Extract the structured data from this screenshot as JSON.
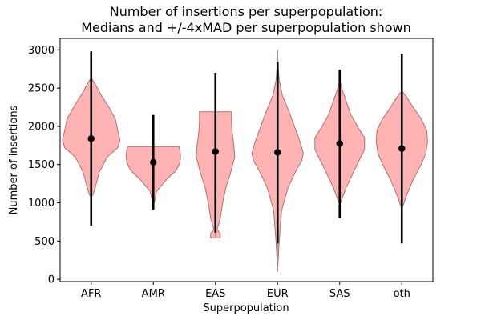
{
  "chart_data": {
    "type": "violin",
    "title_line1": "Number of insertions per superpopulation:",
    "title_line2": "Medians and +/-4xMAD per superpopulation shown",
    "xlabel": "Superpopulation",
    "ylabel": "Number of insertions",
    "ylim": [
      -30,
      3150
    ],
    "yticks": [
      0,
      500,
      1000,
      1500,
      2000,
      2500,
      3000
    ],
    "categories": [
      "AFR",
      "AMR",
      "EAS",
      "EUR",
      "SAS",
      "oth"
    ],
    "medians": [
      1840,
      1530,
      1670,
      1660,
      1775,
      1710
    ],
    "err_low": [
      700,
      910,
      610,
      470,
      800,
      470
    ],
    "err_high": [
      2980,
      2150,
      2700,
      2840,
      2740,
      2950
    ],
    "violin_min": [
      1100,
      1000,
      540,
      100,
      1000,
      950
    ],
    "violin_max": [
      2620,
      1735,
      2190,
      3000,
      2600,
      2450
    ],
    "violin_profiles": [
      [
        [
          1100,
          0.02
        ],
        [
          1200,
          0.05
        ],
        [
          1400,
          0.1
        ],
        [
          1600,
          0.2
        ],
        [
          1720,
          0.33
        ],
        [
          1820,
          0.36
        ],
        [
          1950,
          0.33
        ],
        [
          2100,
          0.3
        ],
        [
          2250,
          0.22
        ],
        [
          2400,
          0.13
        ],
        [
          2550,
          0.05
        ],
        [
          2620,
          0.01
        ]
      ],
      [
        [
          1000,
          0.01
        ],
        [
          1150,
          0.04
        ],
        [
          1300,
          0.16
        ],
        [
          1420,
          0.28
        ],
        [
          1520,
          0.33
        ],
        [
          1620,
          0.34
        ],
        [
          1700,
          0.33
        ],
        [
          1735,
          0.32
        ]
      ],
      [
        [
          540,
          0.06
        ],
        [
          600,
          0.06
        ],
        [
          650,
          0.02
        ],
        [
          800,
          0.06
        ],
        [
          1000,
          0.09
        ],
        [
          1200,
          0.13
        ],
        [
          1400,
          0.19
        ],
        [
          1600,
          0.24
        ],
        [
          1750,
          0.23
        ],
        [
          1900,
          0.21
        ],
        [
          2050,
          0.2
        ],
        [
          2150,
          0.2
        ],
        [
          2190,
          0.2
        ]
      ],
      [
        [
          100,
          0.0
        ],
        [
          500,
          0.02
        ],
        [
          900,
          0.05
        ],
        [
          1200,
          0.13
        ],
        [
          1400,
          0.22
        ],
        [
          1550,
          0.3
        ],
        [
          1650,
          0.32
        ],
        [
          1800,
          0.28
        ],
        [
          2000,
          0.21
        ],
        [
          2200,
          0.14
        ],
        [
          2400,
          0.06
        ],
        [
          2600,
          0.02
        ],
        [
          2800,
          0.005
        ],
        [
          3000,
          0.0
        ]
      ],
      [
        [
          1000,
          0.01
        ],
        [
          1200,
          0.08
        ],
        [
          1400,
          0.17
        ],
        [
          1550,
          0.24
        ],
        [
          1700,
          0.31
        ],
        [
          1850,
          0.31
        ],
        [
          2000,
          0.22
        ],
        [
          2150,
          0.14
        ],
        [
          2300,
          0.09
        ],
        [
          2450,
          0.04
        ],
        [
          2600,
          0.0
        ]
      ],
      [
        [
          950,
          0.01
        ],
        [
          1100,
          0.06
        ],
        [
          1300,
          0.14
        ],
        [
          1500,
          0.24
        ],
        [
          1650,
          0.3
        ],
        [
          1800,
          0.32
        ],
        [
          1950,
          0.31
        ],
        [
          2100,
          0.24
        ],
        [
          2250,
          0.14
        ],
        [
          2400,
          0.05
        ],
        [
          2450,
          0.01
        ]
      ]
    ],
    "colors": {
      "violin_fill": "#ff9999",
      "violin_edge": "#b07070",
      "median": "#000000",
      "errorbar": "#000000",
      "extrema_line": "#999999"
    },
    "grid": false,
    "legend": "none"
  }
}
